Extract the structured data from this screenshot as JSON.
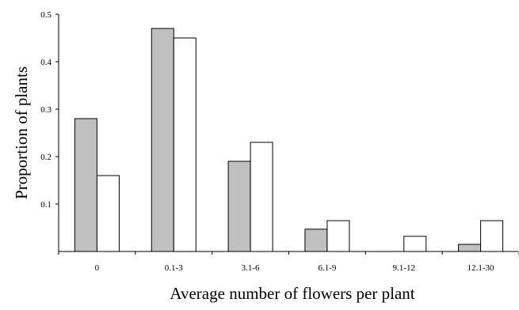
{
  "chart_data": {
    "type": "bar",
    "xlabel": "Average number of flowers per plant",
    "ylabel": "Proportion of plants",
    "categories": [
      "0",
      "0.1-3",
      "3.1-6",
      "6.1-9",
      "9.1-12",
      "12.1-30"
    ],
    "series": [
      {
        "values": [
          0.28,
          0.47,
          0.19,
          0.047,
          0.0,
          0.015
        ],
        "color": "#c0c0c0"
      },
      {
        "values": [
          0.16,
          0.45,
          0.23,
          0.065,
          0.032,
          0.065
        ],
        "color": "#ffffff"
      }
    ],
    "ylim": [
      0,
      0.5
    ],
    "y_ticks": [
      "0.1",
      "0.2",
      "0.3",
      "0.4",
      "0.5"
    ],
    "grid": false,
    "legend": "none"
  }
}
